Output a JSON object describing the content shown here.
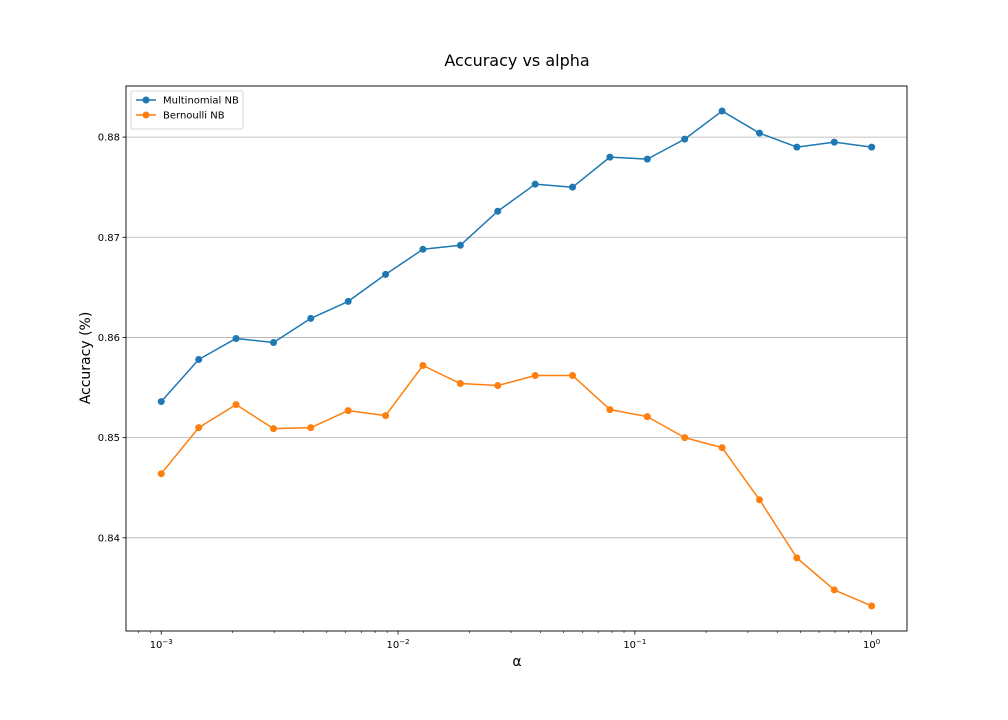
{
  "chart_data": {
    "type": "line",
    "title": "Accuracy vs alpha",
    "xlabel": "α",
    "ylabel": "Accuracy (%)",
    "x_scale": "log",
    "xlim": [
      0.00071,
      1.41
    ],
    "ylim": [
      0.8307,
      0.8851
    ],
    "x_ticks": [
      0.001,
      0.01,
      0.1,
      1
    ],
    "x_tick_labels": [
      {
        "base": "10",
        "exp": "−3"
      },
      {
        "base": "10",
        "exp": "−2"
      },
      {
        "base": "10",
        "exp": "−1"
      },
      {
        "base": "10",
        "exp": "0"
      }
    ],
    "y_ticks": [
      0.84,
      0.85,
      0.86,
      0.87,
      0.88
    ],
    "y_tick_labels": [
      "0.84",
      "0.85",
      "0.86",
      "0.87",
      "0.88"
    ],
    "grid": "horizontal",
    "legend_position": "top-left",
    "x": [
      0.001,
      0.00144,
      0.00207,
      0.00298,
      0.00428,
      0.00616,
      0.00886,
      0.01274,
      0.01833,
      0.02637,
      0.03793,
      0.05456,
      0.07848,
      0.11288,
      0.16238,
      0.23357,
      0.33598,
      0.48329,
      0.69519,
      1.0
    ],
    "series": [
      {
        "name": "Multinomial NB",
        "color": "#1f77b4",
        "values": [
          0.8536,
          0.8578,
          0.8599,
          0.8595,
          0.8619,
          0.8636,
          0.8663,
          0.8688,
          0.8692,
          0.8726,
          0.8753,
          0.875,
          0.878,
          0.8778,
          0.8798,
          0.8826,
          0.8804,
          0.879,
          0.8795,
          0.879
        ]
      },
      {
        "name": "Bernoulli NB",
        "color": "#ff7f0e",
        "values": [
          0.8464,
          0.851,
          0.8533,
          0.8509,
          0.851,
          0.8527,
          0.8522,
          0.8572,
          0.8554,
          0.8552,
          0.8562,
          0.8562,
          0.8528,
          0.8521,
          0.85,
          0.849,
          0.8438,
          0.838,
          0.8348,
          0.8332
        ]
      }
    ]
  }
}
